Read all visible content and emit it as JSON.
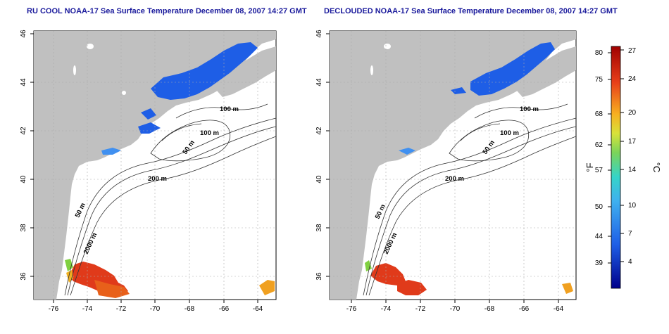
{
  "titles": {
    "left": "RU COOL NOAA-17 Sea Surface Temperature December 08, 2007 14:27 GMT",
    "right": "DECLOUDED NOAA-17 Sea Surface Temperature December 08, 2007 14:27 GMT"
  },
  "axes": {
    "lat_ticks": [
      "46",
      "44",
      "42",
      "40",
      "38",
      "36"
    ],
    "lon_ticks": [
      "-76",
      "-74",
      "-72",
      "-70",
      "-68",
      "-66",
      "-64"
    ]
  },
  "contours": {
    "m100_a": "100 m",
    "m100_b": "100 m",
    "m50_a": "50 m",
    "m200": "200 m",
    "m50_b": "50 m",
    "m2000": "2000 m"
  },
  "colorbar": {
    "f_label": "°F",
    "c_label": "°C",
    "f_ticks": [
      "80",
      "75",
      "68",
      "62",
      "57",
      "50",
      "44",
      "39"
    ],
    "c_ticks": [
      "27",
      "24",
      "20",
      "17",
      "14",
      "10",
      "7",
      "4"
    ]
  },
  "colors": {
    "land": "#c0c0c0",
    "ocean": "#ffffff",
    "title": "#1a1a9c",
    "cold": "#1e5ee6",
    "warm": "#e03a1a"
  }
}
